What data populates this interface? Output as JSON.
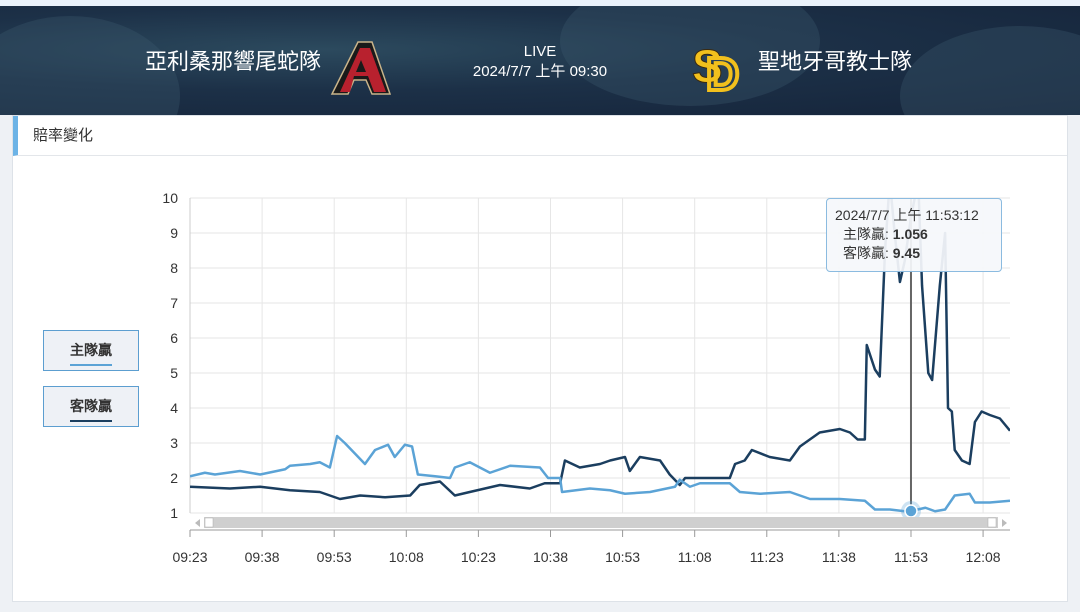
{
  "header": {
    "home_team": "亞利桑那響尾蛇隊",
    "away_team": "聖地牙哥教士隊",
    "status": "LIVE",
    "datetime": "2024/7/7 上午 09:30"
  },
  "panel": {
    "tab_title": "賠率變化"
  },
  "legend": [
    {
      "label": "主隊贏",
      "color": "#5ba3d6"
    },
    {
      "label": "客隊贏",
      "color": "#1b3e5f"
    }
  ],
  "tooltip": {
    "time": "2024/7/7 上午 11:53:12",
    "home_label": "主隊贏: ",
    "home_value": "1.056",
    "away_label": "客隊贏: ",
    "away_value": "9.45"
  },
  "chart_data": {
    "type": "line",
    "x_unit": "minutes since 09:23",
    "xlim": [
      0,
      170.6
    ],
    "ylim": [
      1,
      10
    ],
    "y_ticks": [
      1,
      2,
      3,
      4,
      5,
      6,
      7,
      8,
      9,
      10
    ],
    "x_ticks": [
      {
        "m": 0,
        "label": "09:23"
      },
      {
        "m": 15,
        "label": "09:38"
      },
      {
        "m": 30,
        "label": "09:53"
      },
      {
        "m": 45,
        "label": "10:08"
      },
      {
        "m": 60,
        "label": "10:23"
      },
      {
        "m": 75,
        "label": "10:38"
      },
      {
        "m": 90,
        "label": "10:53"
      },
      {
        "m": 105,
        "label": "11:08"
      },
      {
        "m": 120,
        "label": "11:23"
      },
      {
        "m": 135,
        "label": "11:38"
      },
      {
        "m": 150,
        "label": "11:53"
      },
      {
        "m": 165,
        "label": "12:08"
      }
    ],
    "grid": true,
    "cursor_x": 150,
    "series": [
      {
        "name": "主隊贏",
        "color": "#5ba3d6",
        "points": [
          [
            0,
            2.05
          ],
          [
            3.1,
            2.15
          ],
          [
            5.2,
            2.1
          ],
          [
            10.4,
            2.2
          ],
          [
            14.6,
            2.1
          ],
          [
            19.8,
            2.25
          ],
          [
            20.8,
            2.35
          ],
          [
            25,
            2.4
          ],
          [
            27,
            2.45
          ],
          [
            29.1,
            2.3
          ],
          [
            30.6,
            3.2
          ],
          [
            32.2,
            3.0
          ],
          [
            34.3,
            2.7
          ],
          [
            36.4,
            2.4
          ],
          [
            38.5,
            2.8
          ],
          [
            41.2,
            2.95
          ],
          [
            42.6,
            2.6
          ],
          [
            44.7,
            2.95
          ],
          [
            46.2,
            2.9
          ],
          [
            47.4,
            2.1
          ],
          [
            51,
            2.05
          ],
          [
            54.1,
            2.0
          ],
          [
            55.1,
            2.3
          ],
          [
            58.2,
            2.45
          ],
          [
            60.3,
            2.3
          ],
          [
            62.4,
            2.15
          ],
          [
            66.6,
            2.35
          ],
          [
            72.8,
            2.3
          ],
          [
            74.5,
            2.0
          ],
          [
            77,
            2.0
          ],
          [
            77.4,
            1.6
          ],
          [
            83.2,
            1.7
          ],
          [
            87.4,
            1.65
          ],
          [
            90.5,
            1.55
          ],
          [
            95.7,
            1.6
          ],
          [
            100.9,
            1.75
          ],
          [
            101.9,
            1.95
          ],
          [
            104,
            1.75
          ],
          [
            106.1,
            1.85
          ],
          [
            112.3,
            1.85
          ],
          [
            114.4,
            1.6
          ],
          [
            118.6,
            1.55
          ],
          [
            124.8,
            1.6
          ],
          [
            129,
            1.4
          ],
          [
            135.2,
            1.4
          ],
          [
            140.4,
            1.35
          ],
          [
            142.5,
            1.1
          ],
          [
            145.6,
            1.1
          ],
          [
            148.7,
            1.05
          ],
          [
            150,
            1.056
          ],
          [
            153,
            1.15
          ],
          [
            155,
            1.05
          ],
          [
            157.1,
            1.1
          ],
          [
            159.1,
            1.5
          ],
          [
            162.2,
            1.55
          ],
          [
            163.3,
            1.3
          ],
          [
            166.4,
            1.3
          ],
          [
            170.6,
            1.35
          ]
        ]
      },
      {
        "name": "客隊贏",
        "color": "#1b3e5f",
        "points": [
          [
            0,
            1.75
          ],
          [
            8.3,
            1.7
          ],
          [
            14.6,
            1.75
          ],
          [
            20.8,
            1.65
          ],
          [
            27,
            1.6
          ],
          [
            31.2,
            1.4
          ],
          [
            35.4,
            1.5
          ],
          [
            40.6,
            1.45
          ],
          [
            45.8,
            1.5
          ],
          [
            47.8,
            1.8
          ],
          [
            52,
            1.9
          ],
          [
            55.1,
            1.5
          ],
          [
            58.2,
            1.6
          ],
          [
            64.5,
            1.8
          ],
          [
            70.7,
            1.7
          ],
          [
            73.8,
            1.85
          ],
          [
            77,
            1.85
          ],
          [
            78,
            2.5
          ],
          [
            81.1,
            2.3
          ],
          [
            85.3,
            2.4
          ],
          [
            87.4,
            2.5
          ],
          [
            90.5,
            2.6
          ],
          [
            91.5,
            2.2
          ],
          [
            93.6,
            2.6
          ],
          [
            97.8,
            2.5
          ],
          [
            99.8,
            2.1
          ],
          [
            101.9,
            1.8
          ],
          [
            103,
            2.0
          ],
          [
            112.3,
            2.0
          ],
          [
            113.4,
            2.4
          ],
          [
            115.4,
            2.5
          ],
          [
            116.9,
            2.8
          ],
          [
            120.6,
            2.6
          ],
          [
            124.8,
            2.5
          ],
          [
            126.9,
            2.9
          ],
          [
            131,
            3.3
          ],
          [
            135.2,
            3.4
          ],
          [
            137.3,
            3.3
          ],
          [
            138.9,
            3.1
          ],
          [
            140.4,
            3.1
          ],
          [
            140.8,
            5.8
          ],
          [
            142.5,
            5.1
          ],
          [
            143.5,
            4.9
          ],
          [
            144.6,
            8.5
          ],
          [
            145.6,
            10.5
          ],
          [
            146.6,
            9
          ],
          [
            147.7,
            7.6
          ],
          [
            148.7,
            8.2
          ],
          [
            150,
            9.45
          ],
          [
            151.5,
            10.5
          ],
          [
            152.3,
            7.5
          ],
          [
            153.6,
            5
          ],
          [
            154.4,
            4.8
          ],
          [
            156,
            7.5
          ],
          [
            157.1,
            9
          ],
          [
            157.7,
            4
          ],
          [
            158.5,
            3.9
          ],
          [
            159.1,
            2.8
          ],
          [
            160.6,
            2.5
          ],
          [
            162.2,
            2.4
          ],
          [
            163.3,
            3.6
          ],
          [
            164.7,
            3.9
          ],
          [
            166.4,
            3.8
          ],
          [
            168.5,
            3.7
          ],
          [
            170.6,
            3.35
          ]
        ]
      }
    ]
  }
}
